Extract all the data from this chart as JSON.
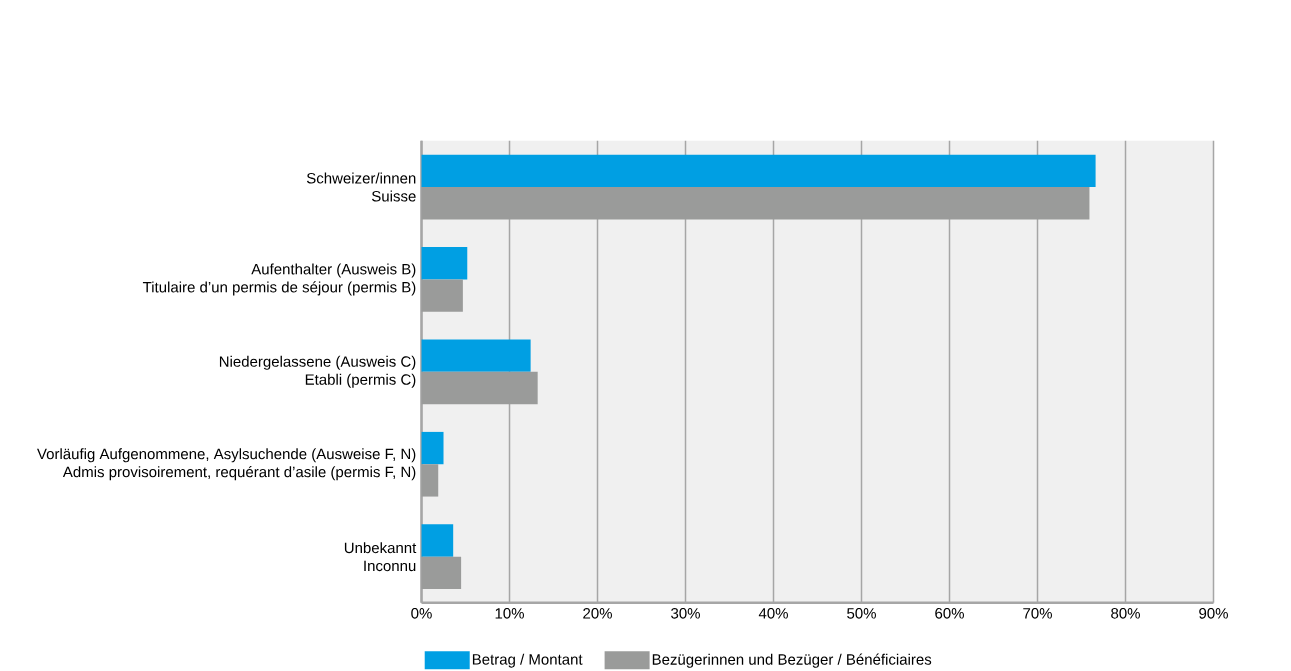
{
  "chart_data": {
    "type": "bar",
    "orientation": "horizontal",
    "categories": [
      "Schweizer/innen\nSuisse",
      "Aufenthalter (Ausweis B)\nTitulaire d’un permis de séjour (permis B)",
      "Niedergelassene (Ausweis C)\nEtabli (permis C)",
      "Vorläufig Aufgenommene, Asylsuchende (Ausweise F, N)\nAdmis provisoirement, requérant d’asile (permis F, N)",
      "Unbekannt\nInconnu"
    ],
    "series": [
      {
        "name": "Betrag / Montant",
        "color": "#009fe3",
        "values": [
          76.6,
          5.2,
          12.4,
          2.5,
          3.6
        ]
      },
      {
        "name": "Bezügerinnen und Bezüger / Bénéficiaires",
        "color": "#9a9b9a",
        "values": [
          75.9,
          4.7,
          13.2,
          1.9,
          4.5
        ]
      }
    ],
    "xlim": [
      0,
      90
    ],
    "xticks": [
      {
        "value": 0,
        "label": "0%"
      },
      {
        "value": 10,
        "label": "10%"
      },
      {
        "value": 20,
        "label": "20%"
      },
      {
        "value": 30,
        "label": "30%"
      },
      {
        "value": 40,
        "label": "40%"
      },
      {
        "value": 50,
        "label": "50%"
      },
      {
        "value": 60,
        "label": "60%"
      },
      {
        "value": 70,
        "label": "70%"
      },
      {
        "value": 80,
        "label": "80%"
      },
      {
        "value": 90,
        "label": "90%"
      }
    ],
    "grid": "x",
    "legend": "bottom"
  }
}
